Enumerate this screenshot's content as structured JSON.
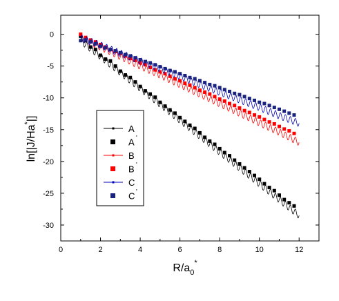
{
  "chart_data": {
    "type": "line",
    "title": "",
    "xlabel": "R/a",
    "xlabel_sub": "0",
    "xlabel_sup": "*",
    "ylabel": "ln[|J/Ha",
    "ylabel_sup": "*",
    "ylabel_end": "|]",
    "xlim": [
      0,
      13
    ],
    "ylim": [
      -32.5,
      3
    ],
    "xticks": [
      0,
      2,
      4,
      6,
      8,
      10,
      12
    ],
    "yticks": [
      0,
      -5,
      -10,
      -15,
      -20,
      -25,
      -30
    ],
    "grid": false,
    "legend_position": "left",
    "series": [
      {
        "name": "A",
        "style": "line",
        "color": "#000000",
        "x": [
          1,
          2,
          3,
          4,
          5,
          6,
          7,
          8,
          9,
          10,
          11,
          12
        ],
        "values": [
          -1.0,
          -3.5,
          -6.0,
          -8.5,
          -11.0,
          -13.5,
          -16.0,
          -18.5,
          -21.0,
          -23.5,
          -26.0,
          -28.5
        ]
      },
      {
        "name": "A",
        "style": "markers",
        "color": "#000000",
        "x": [
          1.0,
          1.25,
          1.5,
          1.75,
          2.0,
          2.25,
          2.5,
          2.75,
          3.0,
          3.25,
          3.5,
          3.75,
          4.0,
          4.25,
          4.5,
          4.75,
          5.0,
          5.25,
          5.5,
          5.75,
          6.0,
          6.25,
          6.5,
          6.75,
          7.0,
          7.25,
          7.5,
          7.75,
          8.0,
          8.25,
          8.5,
          8.75,
          9.0,
          9.25,
          9.5,
          9.75,
          10.0,
          10.25,
          10.5,
          10.75,
          11.0,
          11.25,
          11.5,
          11.75
        ],
        "values": [
          -0.3,
          -1.0,
          -2.0,
          -2.4,
          -3.3,
          -3.9,
          -4.2,
          -5.0,
          -5.8,
          -6.4,
          -6.8,
          -7.5,
          -8.2,
          -8.9,
          -9.4,
          -9.9,
          -10.7,
          -11.3,
          -11.9,
          -12.4,
          -13.1,
          -13.7,
          -14.3,
          -14.8,
          -15.5,
          -16.2,
          -16.8,
          -17.3,
          -18.0,
          -18.6,
          -19.1,
          -19.8,
          -20.4,
          -21.0,
          -21.6,
          -22.2,
          -22.8,
          -23.5,
          -24.1,
          -24.6,
          -25.3,
          -26.0,
          -26.5,
          -27.0
        ]
      },
      {
        "name": "B",
        "style": "line",
        "color": "#ff0000",
        "x": [
          1,
          2,
          3,
          4,
          5,
          6,
          7,
          8,
          9,
          10,
          11,
          12
        ],
        "values": [
          -0.5,
          -2.0,
          -3.5,
          -5.0,
          -6.4,
          -7.9,
          -9.4,
          -10.9,
          -12.4,
          -13.9,
          -15.4,
          -17.0
        ]
      },
      {
        "name": "B",
        "style": "markers",
        "color": "#ff0000",
        "x": [
          1.0,
          1.25,
          1.5,
          1.75,
          2.0,
          2.25,
          2.5,
          2.75,
          3.0,
          3.25,
          3.5,
          3.75,
          4.0,
          4.25,
          4.5,
          4.75,
          5.0,
          5.25,
          5.5,
          5.75,
          6.0,
          6.25,
          6.5,
          6.75,
          7.0,
          7.25,
          7.5,
          7.75,
          8.0,
          8.25,
          8.5,
          8.75,
          9.0,
          9.25,
          9.5,
          9.75,
          10.0,
          10.25,
          10.5,
          10.75,
          11.0,
          11.25,
          11.5,
          11.75
        ],
        "values": [
          0.0,
          -0.5,
          -0.9,
          -1.2,
          -1.6,
          -2.0,
          -2.4,
          -2.7,
          -3.0,
          -3.4,
          -3.8,
          -4.1,
          -4.5,
          -4.8,
          -5.2,
          -5.6,
          -5.9,
          -6.2,
          -6.6,
          -7.0,
          -7.3,
          -7.7,
          -8.0,
          -8.4,
          -8.8,
          -9.1,
          -9.4,
          -9.8,
          -10.2,
          -10.5,
          -10.9,
          -11.2,
          -11.6,
          -12.0,
          -12.3,
          -12.7,
          -13.0,
          -13.4,
          -13.8,
          -14.1,
          -14.5,
          -14.9,
          -15.2,
          -15.6
        ]
      },
      {
        "name": "C",
        "style": "line",
        "color": "#0000bb",
        "x": [
          1,
          2,
          3,
          4,
          5,
          6,
          7,
          8,
          9,
          10,
          11,
          12
        ],
        "values": [
          -0.6,
          -1.7,
          -3.0,
          -4.2,
          -5.4,
          -6.6,
          -7.9,
          -9.1,
          -10.3,
          -11.5,
          -12.8,
          -14.0
        ]
      },
      {
        "name": "C",
        "style": "markers",
        "color": "#1a237e",
        "x": [
          1.0,
          1.25,
          1.5,
          1.75,
          2.0,
          2.25,
          2.5,
          2.75,
          3.0,
          3.25,
          3.5,
          3.75,
          4.0,
          4.25,
          4.5,
          4.75,
          5.0,
          5.25,
          5.5,
          5.75,
          6.0,
          6.25,
          6.5,
          6.75,
          7.0,
          7.25,
          7.5,
          7.75,
          8.0,
          8.25,
          8.5,
          8.75,
          9.0,
          9.25,
          9.5,
          9.75,
          10.0,
          10.25,
          10.5,
          10.75,
          11.0,
          11.25,
          11.5,
          11.75
        ],
        "values": [
          -1.0,
          -0.9,
          -1.2,
          -1.5,
          -1.9,
          -2.1,
          -2.4,
          -2.6,
          -2.9,
          -3.2,
          -3.4,
          -3.7,
          -4.0,
          -4.3,
          -4.5,
          -4.8,
          -5.1,
          -5.4,
          -5.7,
          -5.9,
          -6.2,
          -6.5,
          -6.8,
          -7.0,
          -7.3,
          -7.6,
          -7.9,
          -8.1,
          -8.4,
          -8.7,
          -9.0,
          -9.3,
          -9.5,
          -9.8,
          -10.1,
          -10.4,
          -10.7,
          -10.9,
          -11.2,
          -11.5,
          -11.8,
          -12.1,
          -12.4,
          -12.7
        ]
      }
    ],
    "legend": [
      {
        "label": "A",
        "prime": false,
        "style": "line",
        "color": "#000000"
      },
      {
        "label": "A",
        "prime": true,
        "style": "markers",
        "color": "#000000"
      },
      {
        "label": "B",
        "prime": false,
        "style": "line",
        "color": "#ff0000"
      },
      {
        "label": "B",
        "prime": true,
        "style": "markers",
        "color": "#ff0000"
      },
      {
        "label": "C",
        "prime": false,
        "style": "line",
        "color": "#0000bb"
      },
      {
        "label": "C",
        "prime": true,
        "style": "markers",
        "color": "#1a237e"
      }
    ]
  }
}
